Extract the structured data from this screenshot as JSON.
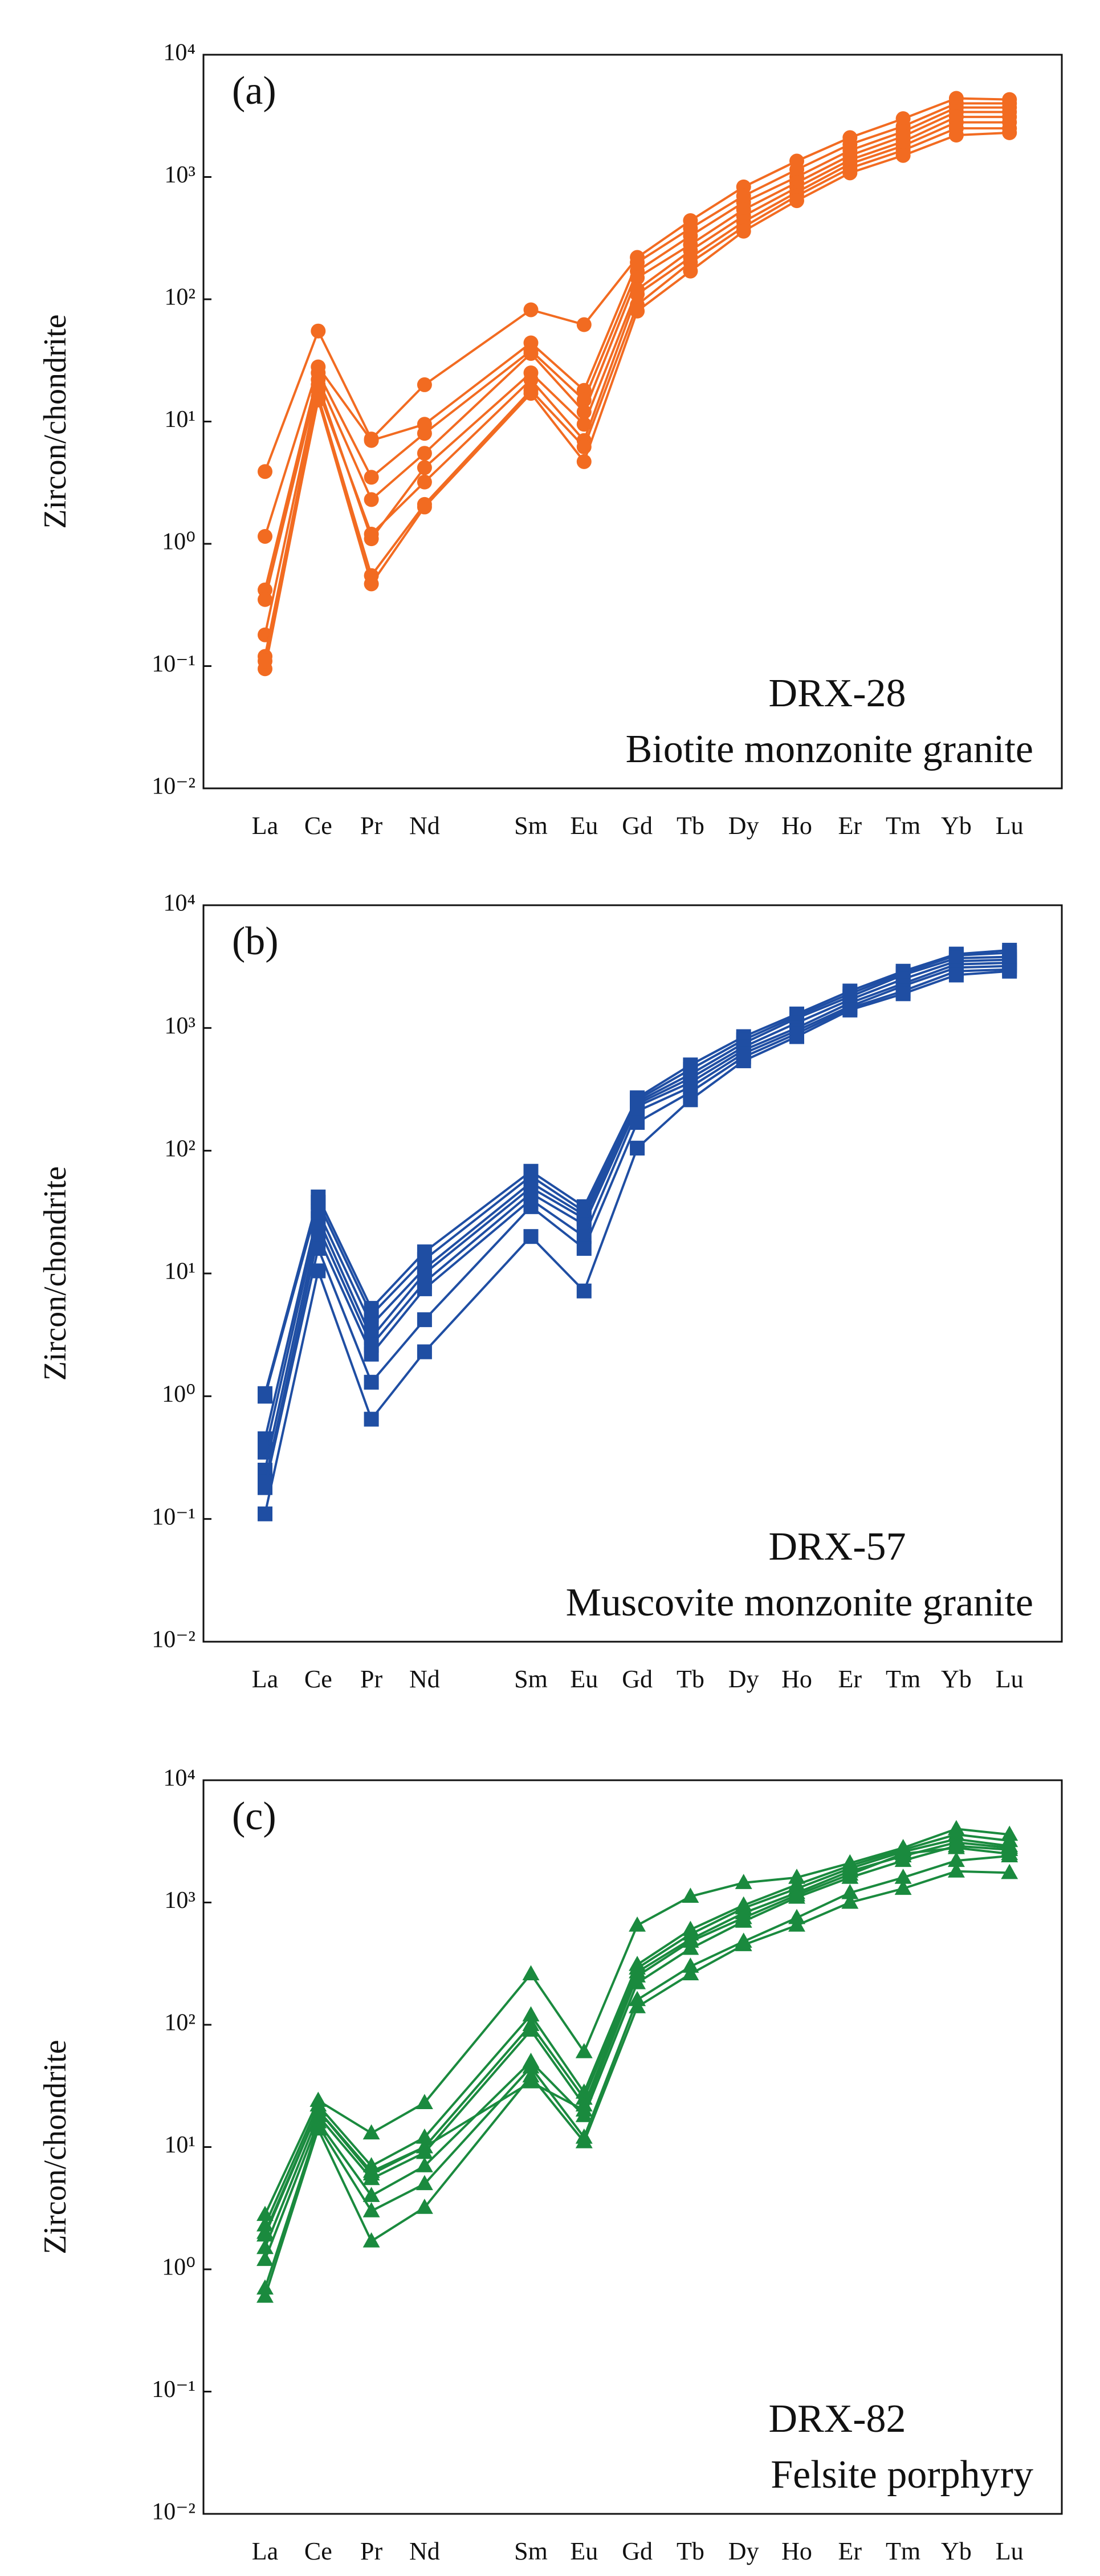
{
  "chart_data": [
    {
      "type": "line",
      "marker": "circle",
      "color": "#f26b21",
      "log_scale": true,
      "ylabel": "Zircon/chondrite",
      "annotations": [
        "(a)",
        "DRX-28",
        "Biotite monzonite granite"
      ],
      "categories": [
        "La",
        "Ce",
        "Pr",
        "Nd",
        "Sm",
        "Eu",
        "Gd",
        "Tb",
        "Dy",
        "Ho",
        "Er",
        "Tm",
        "Yb",
        "Lu"
      ],
      "ylim": [
        0.01,
        10000
      ],
      "yticks": [
        {
          "value": 0.01,
          "label": "10⁻²"
        },
        {
          "value": 0.1,
          "label": "10⁻¹"
        },
        {
          "value": 1,
          "label": "10⁰"
        },
        {
          "value": 10,
          "label": "10¹"
        },
        {
          "value": 100,
          "label": "10²"
        },
        {
          "value": 1000,
          "label": "10³"
        },
        {
          "value": 10000,
          "label": "10⁴"
        }
      ],
      "series": [
        {
          "values": [
            3.9,
            55,
            7.2,
            20,
            82,
            62,
            220,
            440,
            830,
            1350,
            2100,
            3000,
            4400,
            4300
          ]
        },
        {
          "values": [
            1.15,
            28,
            7.0,
            9.5,
            44,
            18,
            200,
            380,
            700,
            1150,
            1850,
            2600,
            4000,
            4000
          ]
        },
        {
          "values": [
            0.42,
            25,
            3.5,
            8,
            38,
            15,
            170,
            330,
            620,
            1000,
            1650,
            2350,
            3700,
            3700
          ]
        },
        {
          "values": [
            0.35,
            22,
            2.3,
            5.5,
            36,
            12,
            150,
            280,
            540,
            900,
            1500,
            2150,
            3400,
            3400
          ]
        },
        {
          "values": [
            0.18,
            20,
            1.1,
            4.2,
            25,
            9.5,
            120,
            250,
            480,
            820,
            1380,
            1950,
            3100,
            3100
          ]
        },
        {
          "values": [
            0.12,
            18,
            1.2,
            3.2,
            22,
            7,
            110,
            220,
            430,
            750,
            1280,
            1800,
            2800,
            2800
          ]
        },
        {
          "values": [
            0.095,
            16,
            0.55,
            2.1,
            18,
            6.2,
            90,
            200,
            390,
            700,
            1180,
            1650,
            2500,
            2500
          ]
        },
        {
          "values": [
            0.11,
            15,
            0.47,
            2.0,
            17,
            4.7,
            80,
            170,
            360,
            640,
            1080,
            1500,
            2200,
            2300
          ]
        }
      ]
    },
    {
      "type": "line",
      "marker": "square",
      "color": "#1f4ea3",
      "log_scale": true,
      "ylabel": "Zircon/chondrite",
      "annotations": [
        "(b)",
        "DRX-57",
        "Muscovite monzonite granite"
      ],
      "categories": [
        "La",
        "Ce",
        "Pr",
        "Nd",
        "Sm",
        "Eu",
        "Gd",
        "Tb",
        "Dy",
        "Ho",
        "Er",
        "Tm",
        "Yb",
        "Lu"
      ],
      "ylim": [
        0.01,
        10000
      ],
      "yticks": [
        {
          "value": 0.01,
          "label": "10⁻²"
        },
        {
          "value": 0.1,
          "label": "10⁻¹"
        },
        {
          "value": 1,
          "label": "10⁰"
        },
        {
          "value": 10,
          "label": "10¹"
        },
        {
          "value": 100,
          "label": "10²"
        },
        {
          "value": 1000,
          "label": "10³"
        },
        {
          "value": 10000,
          "label": "10⁴"
        }
      ],
      "series": [
        {
          "values": [
            1.05,
            42,
            5.2,
            15,
            68,
            35,
            270,
            500,
            850,
            1300,
            2000,
            2900,
            4000,
            4300
          ]
        },
        {
          "values": [
            1.0,
            38,
            4.6,
            13,
            62,
            32,
            260,
            460,
            800,
            1250,
            1900,
            2800,
            3900,
            4100
          ]
        },
        {
          "values": [
            0.45,
            32,
            3.8,
            11,
            55,
            30,
            250,
            420,
            750,
            1200,
            1800,
            2700,
            3700,
            3800
          ]
        },
        {
          "values": [
            0.35,
            28,
            3.0,
            10,
            50,
            28,
            240,
            390,
            700,
            1100,
            1700,
            2500,
            3500,
            3600
          ]
        },
        {
          "values": [
            0.25,
            24,
            2.6,
            8.5,
            45,
            25,
            230,
            360,
            660,
            1000,
            1600,
            2300,
            3300,
            3400
          ]
        },
        {
          "values": [
            0.2,
            20,
            2.2,
            7.5,
            40,
            20,
            210,
            330,
            620,
            950,
            1500,
            2200,
            3100,
            3200
          ]
        },
        {
          "values": [
            0.18,
            16,
            1.3,
            4.2,
            35,
            16,
            170,
            300,
            580,
            900,
            1450,
            2000,
            2900,
            3000
          ]
        },
        {
          "values": [
            0.11,
            10.5,
            0.65,
            2.3,
            20,
            7.2,
            105,
            260,
            540,
            850,
            1400,
            1900,
            2700,
            2900
          ]
        }
      ]
    },
    {
      "type": "line",
      "marker": "triangle",
      "color": "#1a8a3e",
      "log_scale": true,
      "ylabel": "Zircon/chondrite",
      "annotations": [
        "(c)",
        "DRX-82",
        "Felsite porphyry"
      ],
      "categories": [
        "La",
        "Ce",
        "Pr",
        "Nd",
        "Sm",
        "Eu",
        "Gd",
        "Tb",
        "Dy",
        "Ho",
        "Er",
        "Tm",
        "Yb",
        "Lu"
      ],
      "ylim": [
        0.01,
        10000
      ],
      "yticks": [
        {
          "value": 0.01,
          "label": "10⁻²"
        },
        {
          "value": 0.1,
          "label": "10⁻¹"
        },
        {
          "value": 1,
          "label": "10⁰"
        },
        {
          "value": 10,
          "label": "10¹"
        },
        {
          "value": 100,
          "label": "10²"
        },
        {
          "value": 1000,
          "label": "10³"
        },
        {
          "value": 10000,
          "label": "10⁴"
        }
      ],
      "series": [
        {
          "values": [
            2.8,
            24,
            13,
            23,
            260,
            60,
            650,
            1120,
            1450,
            1600,
            2100,
            2800,
            4000,
            3600
          ]
        },
        {
          "values": [
            2.3,
            22,
            7,
            12,
            120,
            28,
            310,
            600,
            950,
            1400,
            2000,
            2700,
            3600,
            3200
          ]
        },
        {
          "values": [
            1.9,
            20,
            6.3,
            10,
            100,
            25,
            290,
            550,
            900,
            1300,
            1900,
            2600,
            3300,
            2900
          ]
        },
        {
          "values": [
            1.5,
            18,
            5.5,
            9,
            90,
            22,
            270,
            500,
            820,
            1200,
            1800,
            2400,
            3100,
            2800
          ]
        },
        {
          "values": [
            1.2,
            16,
            4,
            7,
            50,
            18,
            220,
            420,
            700,
            1100,
            1600,
            2200,
            2900,
            2700
          ]
        },
        {
          "values": [
            0.7,
            15,
            3,
            5,
            45,
            12,
            160,
            300,
            480,
            750,
            1200,
            1600,
            2200,
            2400
          ]
        },
        {
          "values": [
            0.6,
            14,
            1.7,
            3.2,
            38,
            11,
            140,
            260,
            450,
            650,
            1000,
            1300,
            1800,
            1750
          ]
        },
        {
          "values": [
            2.0,
            20,
            6,
            10,
            34,
            20,
            250,
            480,
            750,
            1150,
            1700,
            2500,
            2800,
            2500
          ]
        }
      ]
    }
  ]
}
